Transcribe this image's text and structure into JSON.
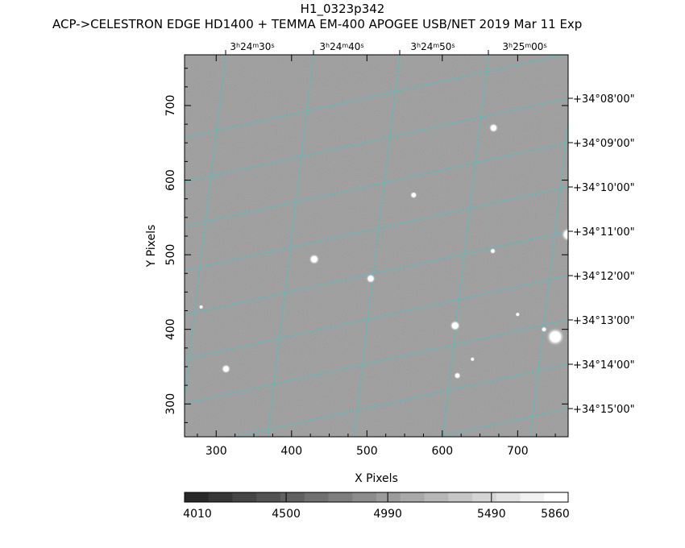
{
  "title": "H1_0323p342",
  "subtitle": "ACP->CELESTRON EDGE HD1400 + TEMMA EM-400 APOGEE USB/NET   2019 Mar 11    Exp",
  "axes": {
    "xlabel": "X Pixels",
    "ylabel": "Y Pixels",
    "xlim": [
      258,
      767
    ],
    "ylim": [
      256,
      768
    ],
    "x_ticks": [
      "300",
      "400",
      "500",
      "600",
      "700"
    ],
    "x_tick_values": [
      300,
      400,
      500,
      600,
      700
    ],
    "y_ticks": [
      "300",
      "400",
      "500",
      "600",
      "700"
    ],
    "y_tick_values": [
      300,
      400,
      500,
      600,
      700
    ]
  },
  "ra_labels": [
    {
      "h": "3",
      "m": "24",
      "s": "30"
    },
    {
      "h": "3",
      "m": "24",
      "s": "40"
    },
    {
      "h": "3",
      "m": "24",
      "s": "50"
    },
    {
      "h": "3",
      "m": "25",
      "s": "00"
    }
  ],
  "dec_labels": [
    "+34°08'00\"",
    "+34°09'00\"",
    "+34°10'00\"",
    "+34°11'00\"",
    "+34°12'00\"",
    "+34°13'00\"",
    "+34°14'00\"",
    "+34°15'00\""
  ],
  "colorbar": {
    "labels": [
      "4010",
      "4500",
      "4990",
      "5490",
      "5860"
    ],
    "min": 4010,
    "max": 5860,
    "steps": 16
  },
  "stars": [
    {
      "x": 750,
      "y": 390,
      "r": 8
    },
    {
      "x": 767,
      "y": 527,
      "r": 6
    },
    {
      "x": 617,
      "y": 405,
      "r": 4.5
    },
    {
      "x": 430,
      "y": 494,
      "r": 4.5
    },
    {
      "x": 668,
      "y": 670,
      "r": 4
    },
    {
      "x": 505,
      "y": 468,
      "r": 4
    },
    {
      "x": 313,
      "y": 347,
      "r": 4
    },
    {
      "x": 562,
      "y": 580,
      "r": 3
    },
    {
      "x": 620,
      "y": 338,
      "r": 3
    },
    {
      "x": 667,
      "y": 505,
      "r": 2.5
    },
    {
      "x": 735,
      "y": 400,
      "r": 2.5
    },
    {
      "x": 640,
      "y": 360,
      "r": 2
    },
    {
      "x": 280,
      "y": 430,
      "r": 2
    },
    {
      "x": 700,
      "y": 420,
      "r": 2
    }
  ],
  "colors": {
    "image_bg": "#9a9a9a",
    "grid": "#00e0e0"
  }
}
